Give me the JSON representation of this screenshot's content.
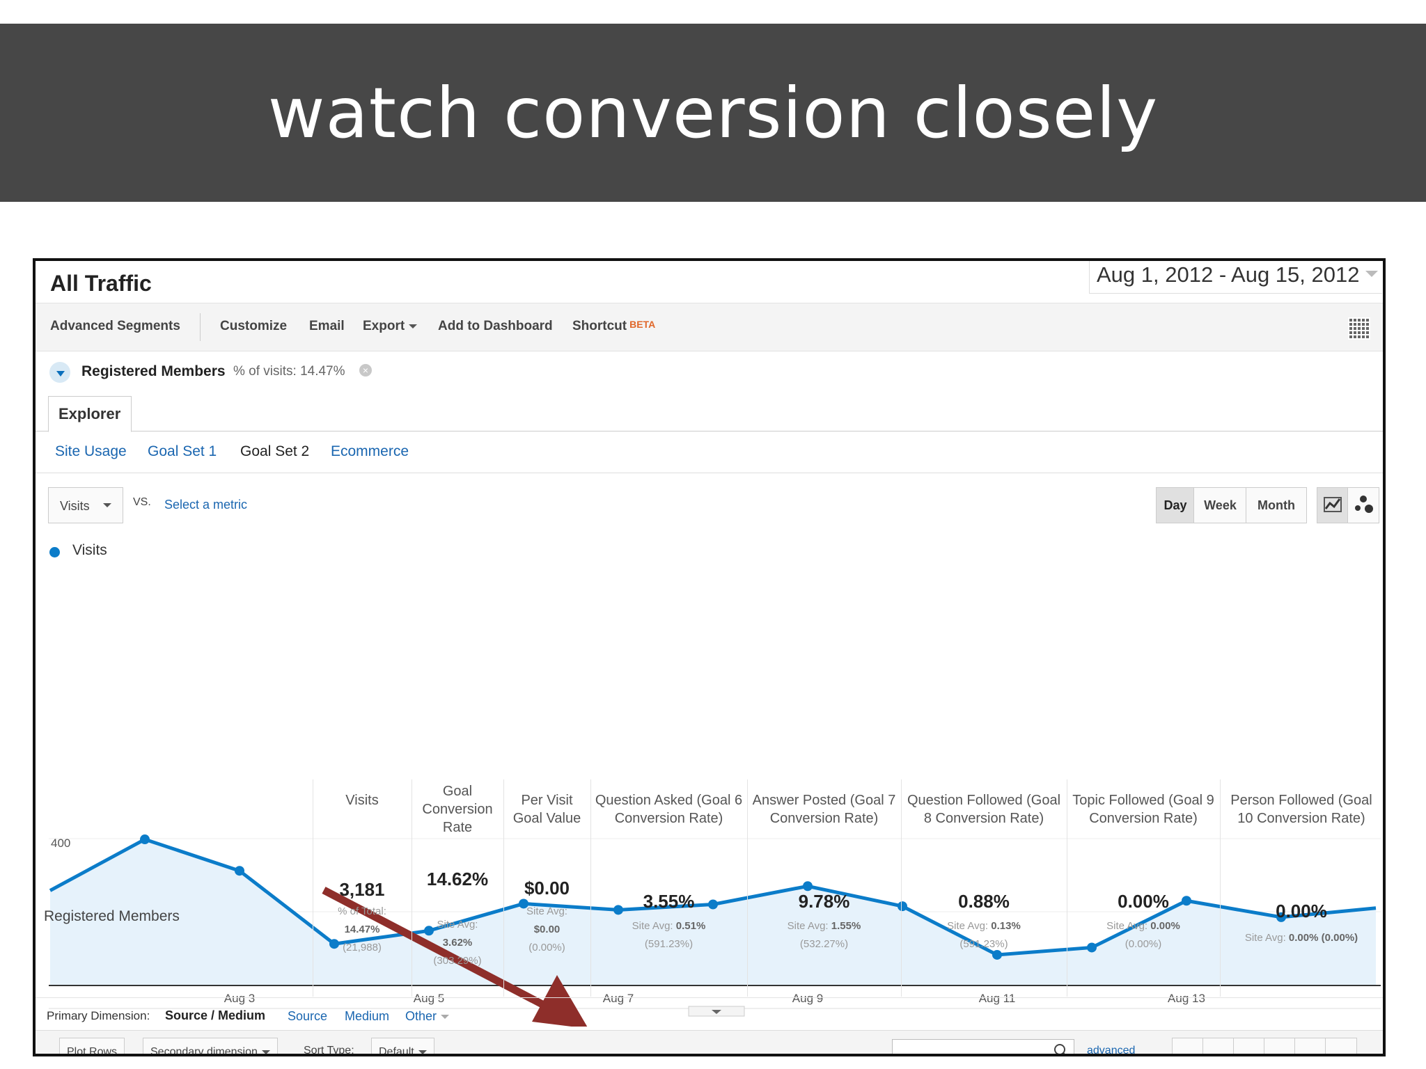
{
  "slide": {
    "title": "watch conversion closely"
  },
  "report": {
    "title": "All Traffic",
    "date_range": "Aug 1, 2012 - Aug 15, 2012"
  },
  "toolbar": {
    "advanced_segments": "Advanced Segments",
    "customize": "Customize",
    "email": "Email",
    "export": "Export",
    "add_to_dashboard": "Add to Dashboard",
    "shortcut": "Shortcut",
    "beta": "BETA"
  },
  "segment": {
    "name": "Registered Members",
    "pct_label": "% of visits: 14.47%"
  },
  "tabs": {
    "explorer": "Explorer"
  },
  "subtabs": [
    "Site Usage",
    "Goal Set 1",
    "Goal Set 2",
    "Ecommerce"
  ],
  "metric": {
    "selected": "Visits",
    "vs": "VS.",
    "select_metric": "Select a metric"
  },
  "periods": [
    "Day",
    "Week",
    "Month"
  ],
  "icons": {
    "dropdown": "chevron-down-icon",
    "grid": "grid-icon",
    "segment": "pie-segment-icon",
    "remove": "close-icon",
    "line_chart": "line-chart-icon",
    "motion_chart": "motion-chart-icon",
    "search": "search-icon",
    "arrow": "red-arrow-annotation"
  },
  "chart_data": {
    "type": "area",
    "legend": [
      "Visits"
    ],
    "series": [
      {
        "name": "Visits",
        "values": [
          258,
          398,
          312,
          112,
          148,
          222,
          205,
          220,
          270,
          215,
          82,
          102,
          230,
          185,
          210
        ]
      }
    ],
    "x": [
      "Aug 1",
      "Aug 2",
      "Aug 3",
      "Aug 4",
      "Aug 5",
      "Aug 6",
      "Aug 7",
      "Aug 8",
      "Aug 9",
      "Aug 10",
      "Aug 11",
      "Aug 12",
      "Aug 13",
      "Aug 14",
      "Aug 15"
    ],
    "xticks": [
      "Aug 3",
      "Aug 5",
      "Aug 7",
      "Aug 9",
      "Aug 11",
      "Aug 13"
    ],
    "yticks": [
      200,
      400
    ],
    "ylim": [
      0,
      400
    ],
    "color": "#0b7cc9",
    "fill": "#e6f2fb",
    "grid": true
  },
  "table": {
    "row_label": "Registered Members",
    "columns": [
      {
        "header": "Visits",
        "value": "3,181",
        "sub": [
          "% of Total:",
          "14.47%",
          "(21,988)"
        ]
      },
      {
        "header": "Goal Conversion Rate",
        "value": "14.62%",
        "sub": [
          "Site Avg:",
          "3.62%",
          "(303.29%)"
        ]
      },
      {
        "header": "Per Visit Goal Value",
        "value": "$0.00",
        "sub": [
          "Site Avg:",
          "$0.00",
          "(0.00%)"
        ]
      },
      {
        "header": "Question Asked (Goal 6 Conversion Rate)",
        "value": "3.55%",
        "sub": [
          "Site Avg:",
          "0.51%",
          "(591.23%)"
        ]
      },
      {
        "header": "Answer Posted (Goal 7 Conversion Rate)",
        "value": "9.78%",
        "sub": [
          "Site Avg:",
          "1.55%",
          "(532.27%)"
        ]
      },
      {
        "header": "Question Followed (Goal 8 Conversion Rate)",
        "value": "0.88%",
        "sub": [
          "Site Avg:",
          "0.13%",
          "(591.23%)"
        ]
      },
      {
        "header": "Topic Followed (Goal 9 Conversion Rate)",
        "value": "0.00%",
        "sub": [
          "Site Avg:",
          "0.00%",
          "(0.00%)"
        ]
      },
      {
        "header": "Person Followed (Goal 10 Conversion Rate)",
        "value": "0.00%",
        "sub": [
          "Site Avg:",
          "0.00%",
          "(0.00%)"
        ]
      }
    ]
  },
  "dimension": {
    "label": "Primary Dimension:",
    "active": "Source / Medium",
    "links": [
      "Source",
      "Medium",
      "Other"
    ]
  },
  "bottom": {
    "plot_rows": "Plot Rows",
    "secondary_dimension": "Secondary dimension",
    "sort_type": "Sort Type:",
    "sort_default": "Default",
    "advanced": "advanced"
  }
}
